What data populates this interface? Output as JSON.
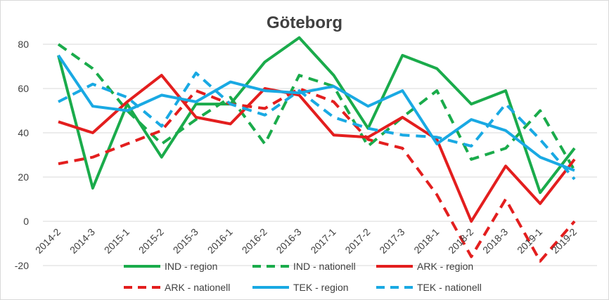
{
  "chart_data": {
    "type": "line",
    "title": "Göteborg",
    "xlabel": "",
    "ylabel": "",
    "ylim": [
      -20,
      80
    ],
    "yticks": [
      -20,
      0,
      20,
      40,
      60,
      80
    ],
    "grid": "horizontal",
    "legend_position": "bottom",
    "categories": [
      "2014-2",
      "2014-3",
      "2015-1",
      "2015-2",
      "2015-3",
      "2016-1",
      "2016-2",
      "2016-3",
      "2017-1",
      "2017-2",
      "2017-3",
      "2018-1",
      "2018-2",
      "2018-3",
      "2019-1",
      "2019-2"
    ],
    "series": [
      {
        "name": "IND - region",
        "color": "#1aab4b",
        "dash": "solid",
        "values": [
          75,
          15,
          53,
          29,
          53,
          53,
          72,
          83,
          66,
          42,
          75,
          69,
          53,
          59,
          13,
          33
        ]
      },
      {
        "name": "IND - nationell",
        "color": "#1aab4b",
        "dash": "dashed",
        "values": [
          80,
          69,
          50,
          35,
          46,
          56,
          35,
          66,
          61,
          34,
          47,
          59,
          28,
          33,
          50,
          23
        ]
      },
      {
        "name": "ARK - region",
        "color": "#e31e1e",
        "dash": "solid",
        "values": [
          45,
          40,
          54,
          66,
          47,
          44,
          60,
          57,
          39,
          38,
          47,
          37,
          0,
          25,
          8,
          28
        ]
      },
      {
        "name": "ARK - nationell",
        "color": "#e31e1e",
        "dash": "dashed",
        "values": [
          26,
          29,
          35,
          41,
          59,
          53,
          51,
          60,
          54,
          37,
          33,
          12,
          -16,
          10,
          -18,
          0
        ]
      },
      {
        "name": "TEK - region",
        "color": "#19a9e3",
        "dash": "solid",
        "values": [
          75,
          52,
          50,
          57,
          54,
          63,
          59,
          58,
          61,
          52,
          59,
          35,
          46,
          41,
          29,
          23
        ]
      },
      {
        "name": "TEK - nationell",
        "color": "#19a9e3",
        "dash": "dashed",
        "values": [
          54,
          62,
          56,
          43,
          67,
          53,
          48,
          59,
          47,
          42,
          39,
          38,
          34,
          53,
          37,
          19
        ]
      }
    ]
  }
}
